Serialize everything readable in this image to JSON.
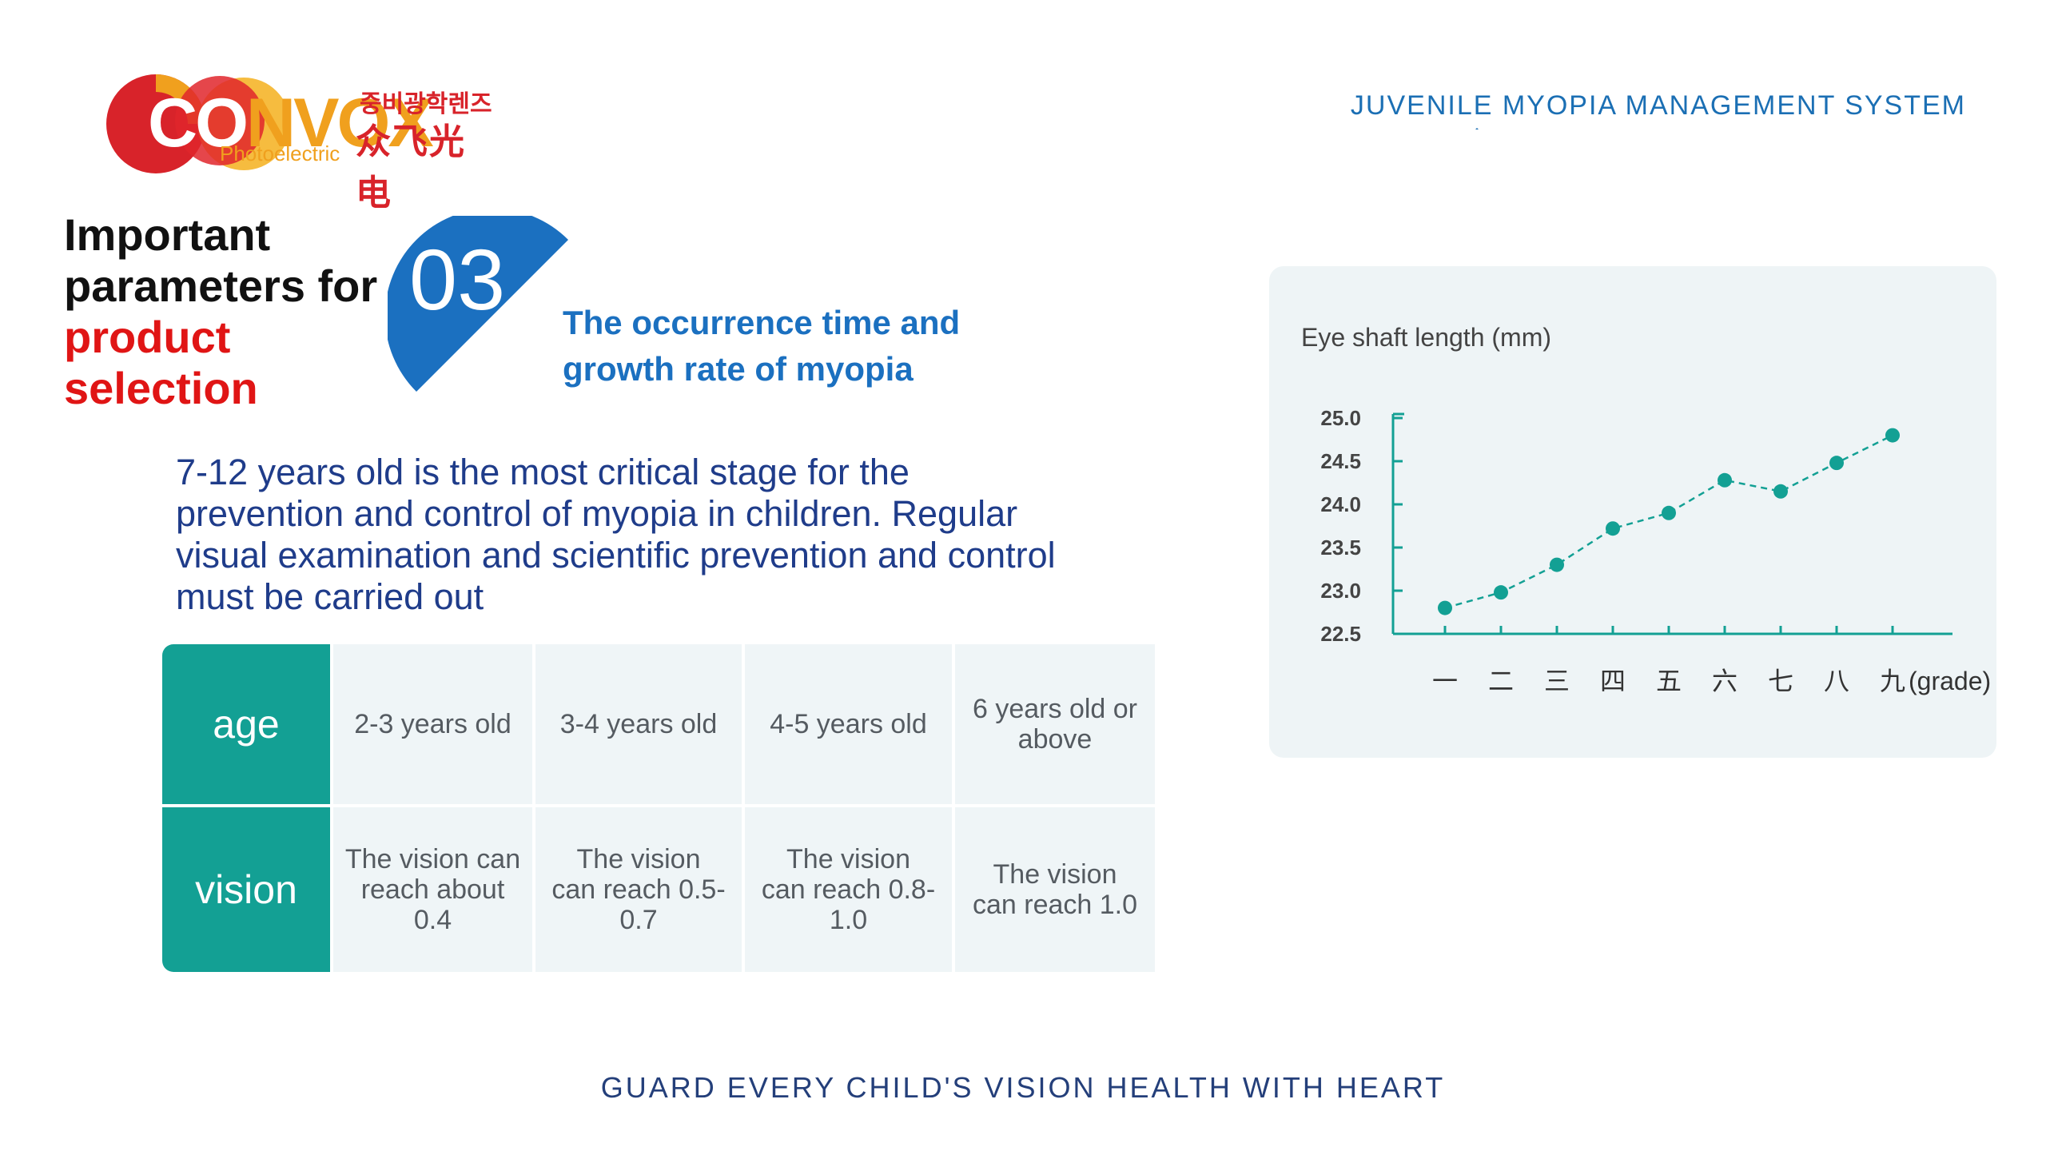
{
  "logo": {
    "brand_pre": "CO",
    "brand_mid": "N",
    "brand_post": "VOX",
    "subtitle": "Photoelectric",
    "korean": "중비광학렌즈",
    "chinese": "众飞光电"
  },
  "header": {
    "title": "JUVENILE MYOPIA MANAGEMENT SYSTEM"
  },
  "heading": {
    "line1": "Important",
    "line2": "parameters for",
    "line3": "product",
    "line4": "selection"
  },
  "section": {
    "number": "03",
    "subtitle": "The occurrence time and growth rate of myopia"
  },
  "body": {
    "text": "7-12 years old is the most critical stage for the prevention and control of myopia in children. Regular visual examination and scientific prevention and control must be carried out"
  },
  "table": {
    "rows": [
      {
        "header": "age",
        "cells": [
          "2-3 years old",
          "3-4 years old",
          "4-5 years old",
          "6 years old or above"
        ]
      },
      {
        "header": "vision",
        "cells": [
          "The vision can reach about 0.4",
          "The vision can reach  0.5-0.7",
          "The vision can reach  0.8-1.0",
          "The vision can reach 1.0"
        ]
      }
    ]
  },
  "chart_data": {
    "type": "line",
    "ylabel": "Eye shaft length (mm)",
    "xlabel": "(grade)",
    "categories": [
      "一",
      "二",
      "三",
      "四",
      "五",
      "六",
      "七",
      "八",
      "九"
    ],
    "values": [
      22.8,
      22.98,
      23.3,
      23.72,
      23.9,
      24.28,
      24.15,
      24.48,
      24.8
    ],
    "yticks": [
      "25.0",
      "24.5",
      "24.0",
      "23.5",
      "23.0",
      "22.5"
    ],
    "ylim": [
      22.5,
      25.0
    ],
    "color": "#13a094",
    "line_style": "dashed",
    "grid": false
  },
  "footer": {
    "text": "GUARD EVERY CHILD'S VISION HEALTH WITH HEART"
  },
  "colors": {
    "teal": "#13a094",
    "blue": "#1b6fb4",
    "red": "#e01515",
    "navy": "#1f3c8a"
  }
}
